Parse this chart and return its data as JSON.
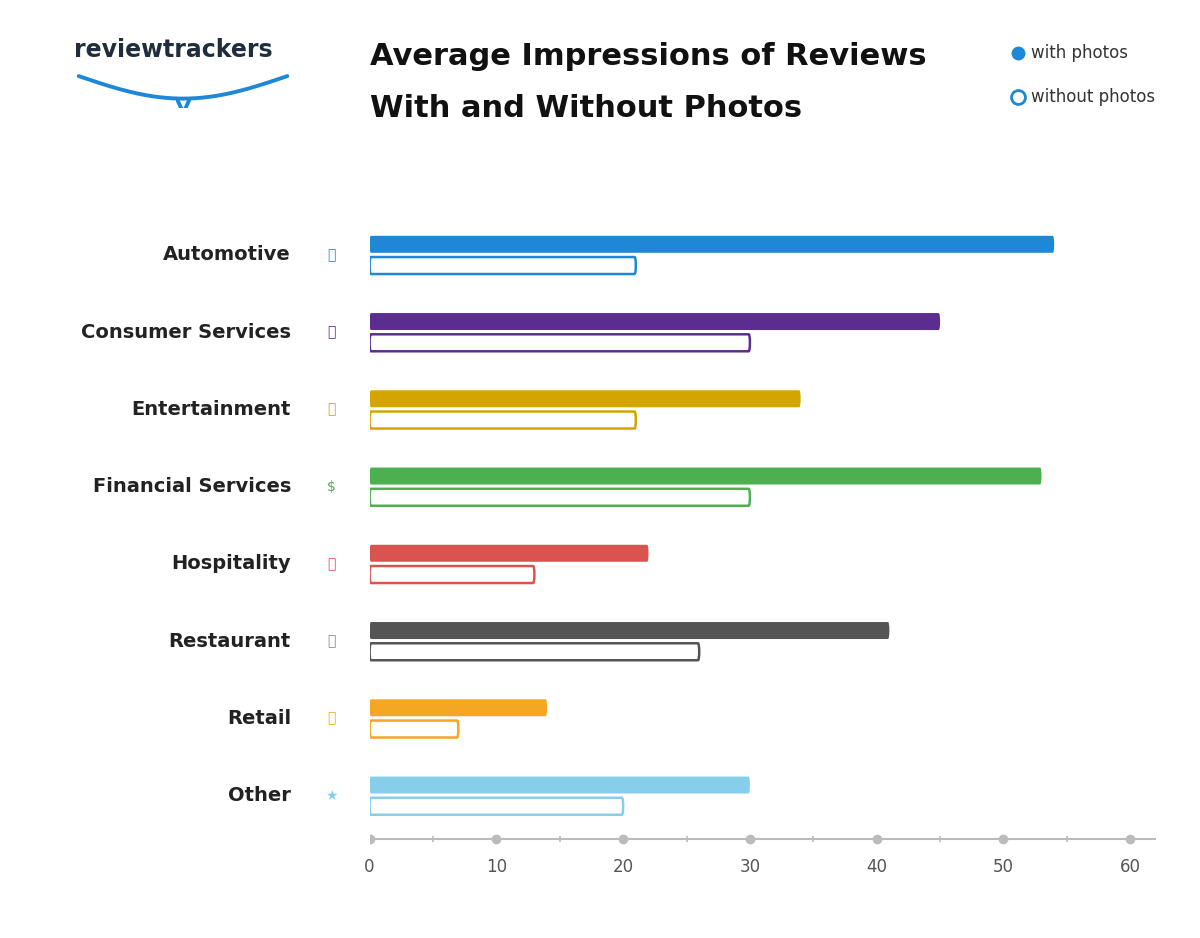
{
  "categories": [
    "Automotive",
    "Consumer Services",
    "Entertainment",
    "Financial Services",
    "Hospitality",
    "Restaurant",
    "Retail",
    "Other"
  ],
  "with_photos": [
    54,
    45,
    34,
    53,
    22,
    41,
    14,
    30
  ],
  "without_photos": [
    21,
    30,
    21,
    30,
    13,
    26,
    7,
    20
  ],
  "bar_colors": [
    "#1e87d6",
    "#5c2d91",
    "#d4a500",
    "#4caf50",
    "#d9534f",
    "#555555",
    "#f5a623",
    "#87ceeb"
  ],
  "icon_bg_colors": [
    "#ddeeff",
    "#ede0f5",
    "#fff8e0",
    "#e8f5e9",
    "#fde8e8",
    "#e8e8e8",
    "#fff3e0",
    "#ddeeff"
  ],
  "icon_fg_colors": [
    "#1e87d6",
    "#5c2d91",
    "#d4a500",
    "#4caf50",
    "#d9534f",
    "#888888",
    "#f5a623",
    "#87ceeb"
  ],
  "title_line1": "Average Impressions of Reviews",
  "title_line2": "With and Without Photos",
  "legend_label_filled": "with photos",
  "legend_label_outline": "without photos",
  "xlim_max": 62,
  "xticks": [
    0,
    10,
    20,
    30,
    40,
    50,
    60
  ],
  "bar_height": 0.22,
  "background_color": "#ffffff",
  "title_fontsize": 22,
  "category_fontsize": 14,
  "tick_fontsize": 12
}
